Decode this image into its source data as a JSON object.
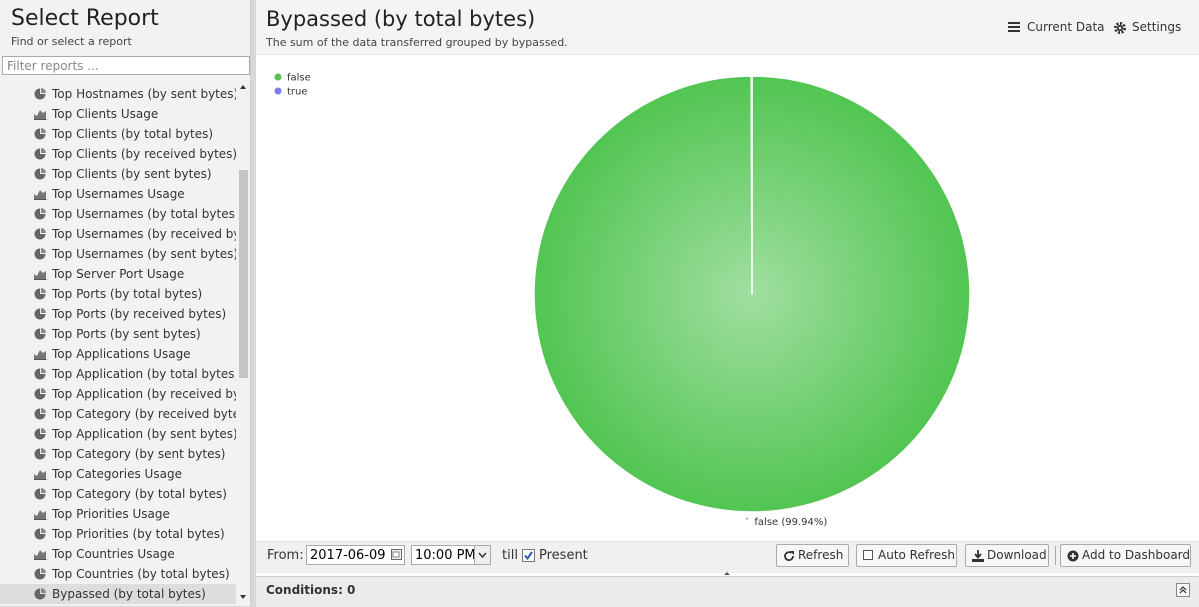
{
  "sidebar": {
    "title": "Select Report",
    "subtitle": "Find or select a report",
    "filter_placeholder": "Filter reports ...",
    "items": [
      {
        "label": "Top Hostnames (by sent bytes)",
        "icon": "pie"
      },
      {
        "label": "Top Clients Usage",
        "icon": "area"
      },
      {
        "label": "Top Clients (by total bytes)",
        "icon": "pie"
      },
      {
        "label": "Top Clients (by received bytes)",
        "icon": "pie"
      },
      {
        "label": "Top Clients (by sent bytes)",
        "icon": "pie"
      },
      {
        "label": "Top Usernames Usage",
        "icon": "area"
      },
      {
        "label": "Top Usernames (by total bytes)",
        "icon": "pie"
      },
      {
        "label": "Top Usernames (by received bytes)",
        "icon": "pie"
      },
      {
        "label": "Top Usernames (by sent bytes)",
        "icon": "pie"
      },
      {
        "label": "Top Server Port Usage",
        "icon": "area"
      },
      {
        "label": "Top Ports (by total bytes)",
        "icon": "pie"
      },
      {
        "label": "Top Ports (by received bytes)",
        "icon": "pie"
      },
      {
        "label": "Top Ports (by sent bytes)",
        "icon": "pie"
      },
      {
        "label": "Top Applications Usage",
        "icon": "area"
      },
      {
        "label": "Top Application (by total bytes)",
        "icon": "pie"
      },
      {
        "label": "Top Application (by received bytes)",
        "icon": "pie"
      },
      {
        "label": "Top Category (by received bytes)",
        "icon": "pie"
      },
      {
        "label": "Top Application (by sent bytes)",
        "icon": "pie"
      },
      {
        "label": "Top Category (by sent bytes)",
        "icon": "pie"
      },
      {
        "label": "Top Categories Usage",
        "icon": "area"
      },
      {
        "label": "Top Category (by total bytes)",
        "icon": "pie"
      },
      {
        "label": "Top Priorities Usage",
        "icon": "area"
      },
      {
        "label": "Top Priorities (by total bytes)",
        "icon": "pie"
      },
      {
        "label": "Top Countries Usage",
        "icon": "area"
      },
      {
        "label": "Top Countries (by total bytes)",
        "icon": "pie"
      },
      {
        "label": "Bypassed (by total bytes)",
        "icon": "pie",
        "selected": true
      }
    ]
  },
  "report": {
    "title": "Bypassed (by total bytes)",
    "subtitle": "The sum of the data transferred grouped by bypassed.",
    "current_data": "Current Data",
    "settings": "Settings",
    "chart": {
      "type": "pie",
      "categories": [
        "false",
        "true"
      ],
      "values": [
        99.94,
        0.06
      ],
      "value_labels": [
        "false (99.94%)",
        null
      ],
      "colors": [
        "#52c552",
        "#7b7bf0"
      ],
      "legend": "top-left"
    }
  },
  "toolbar": {
    "from_label": "From:",
    "date": "2017-06-09",
    "time": "10:00 PM",
    "till_label": "till",
    "present_label": "Present",
    "present_checked": true,
    "refresh": "Refresh",
    "auto_refresh": "Auto Refresh",
    "download": "Download",
    "add_to_dashboard": "Add to Dashboard"
  },
  "conditions": "Conditions: 0"
}
